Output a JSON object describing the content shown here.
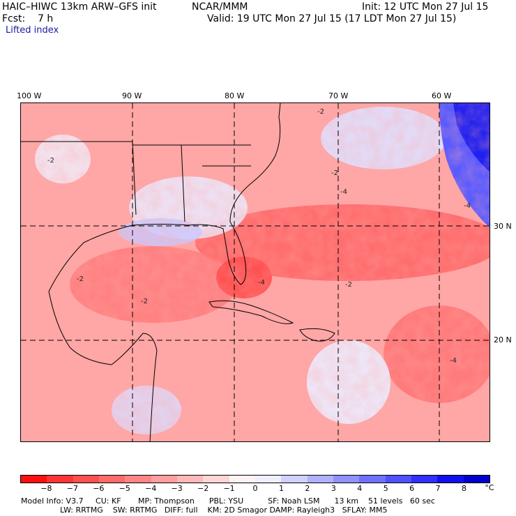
{
  "header": {
    "model_title": "HAIC–HIWC 13km ARW–GFS init",
    "org": "NCAR/MMM",
    "init": "Init: 12 UTC Mon 27 Jul 15",
    "fcst": "Fcst:    7 h",
    "valid": "Valid: 19 UTC Mon 27 Jul 15 (17 LDT Mon 27 Jul 15)",
    "field": "Lifted index"
  },
  "map": {
    "lon_labels": [
      "100 W",
      "90 W",
      "80 W",
      "70 W",
      "60 W"
    ],
    "lat_labels": [
      "30 N",
      "20 N"
    ],
    "contour_labels": [
      "-2",
      "-2",
      "-2",
      "-4",
      "-4",
      "-2",
      "-4",
      "-2",
      "-4",
      "-2"
    ]
  },
  "colorbar": {
    "ticks": [
      "−8",
      "−7",
      "−6",
      "−5",
      "−4",
      "−3",
      "−2",
      "−1",
      "0",
      "1",
      "2",
      "3",
      "4",
      "5",
      "6",
      "7",
      "8"
    ],
    "unit": "°C",
    "colors": [
      "#ff1010",
      "#ff3535",
      "#ff5050",
      "#ff6a6a",
      "#ff8484",
      "#ff9e9e",
      "#ffb8b8",
      "#ffd4d4",
      "#fff2f2",
      "#eeeeff",
      "#d0d0ff",
      "#b0b0ff",
      "#9090ff",
      "#7070ff",
      "#5050ff",
      "#3030ff",
      "#1010ee",
      "#0000cc"
    ]
  },
  "model_info": {
    "line1": "Model Info: V3.7     CU: KF       MP: Thompson      PBL: YSU          SF: Noah LSM      13 km    51 levels   60 sec",
    "line2": "                LW: RRTMG    SW: RRTMG   DIFF: full    KM: 2D Smagor DAMP: Rayleigh3   SFLAY: MM5"
  }
}
